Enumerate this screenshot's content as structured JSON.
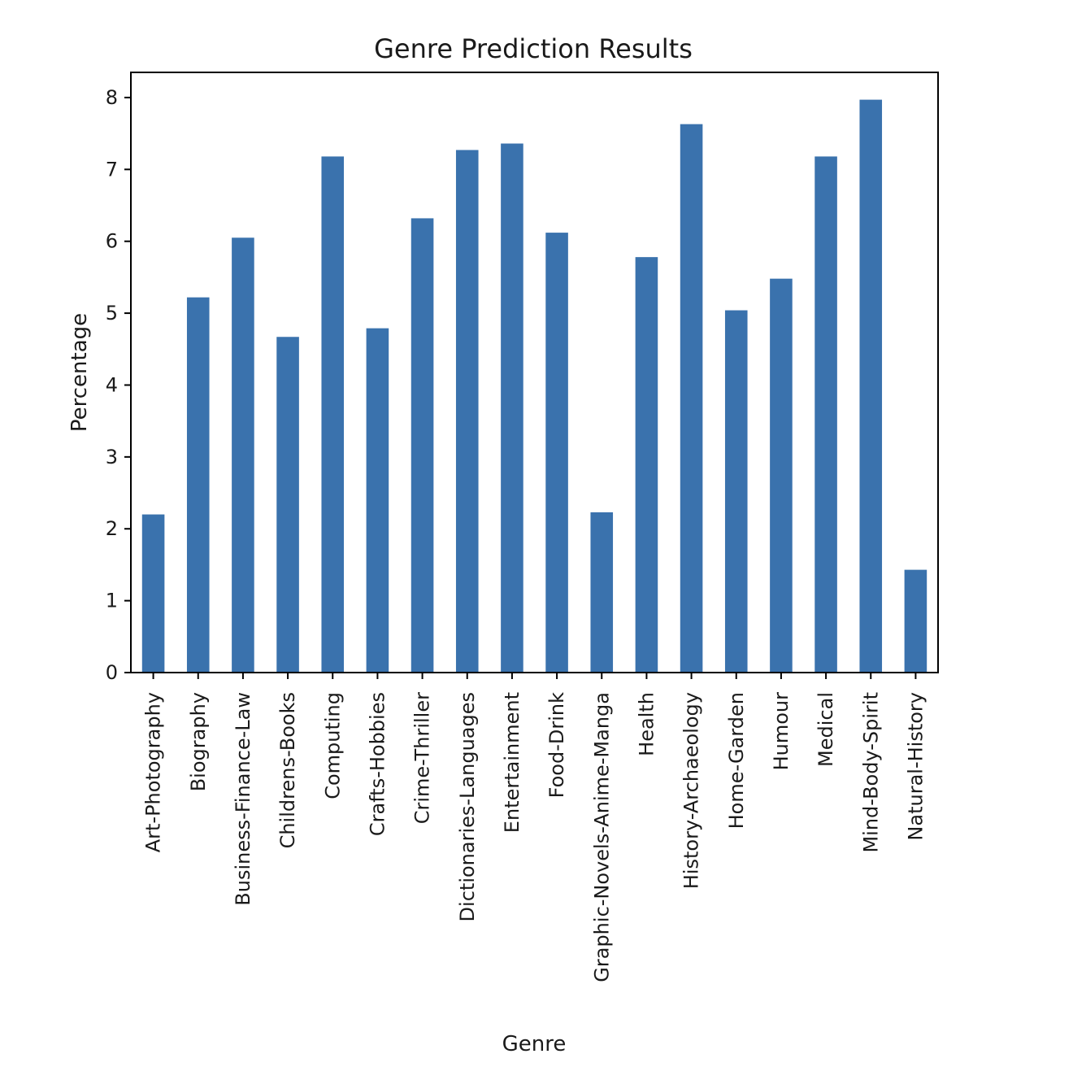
{
  "chart_data": {
    "type": "bar",
    "title": "Genre Prediction Results",
    "xlabel": "Genre",
    "ylabel": "Percentage",
    "categories": [
      "Art-Photography",
      "Biography",
      "Business-Finance-Law",
      "Childrens-Books",
      "Computing",
      "Crafts-Hobbies",
      "Crime-Thriller",
      "Dictionaries-Languages",
      "Entertainment",
      "Food-Drink",
      "Graphic-Novels-Anime-Manga",
      "Health",
      "History-Archaeology",
      "Home-Garden",
      "Humour",
      "Medical",
      "Mind-Body-Spirit",
      "Natural-History"
    ],
    "values": [
      2.2,
      5.22,
      6.05,
      4.67,
      7.18,
      4.79,
      6.32,
      7.27,
      7.36,
      6.12,
      2.23,
      5.78,
      7.63,
      5.04,
      5.48,
      7.18,
      7.97,
      1.43
    ],
    "ylim": [
      0,
      8.35
    ],
    "yticks": [
      0,
      1,
      2,
      3,
      4,
      5,
      6,
      7,
      8
    ],
    "bar_color": "#3a72ad",
    "grid": false,
    "legend": "none"
  }
}
